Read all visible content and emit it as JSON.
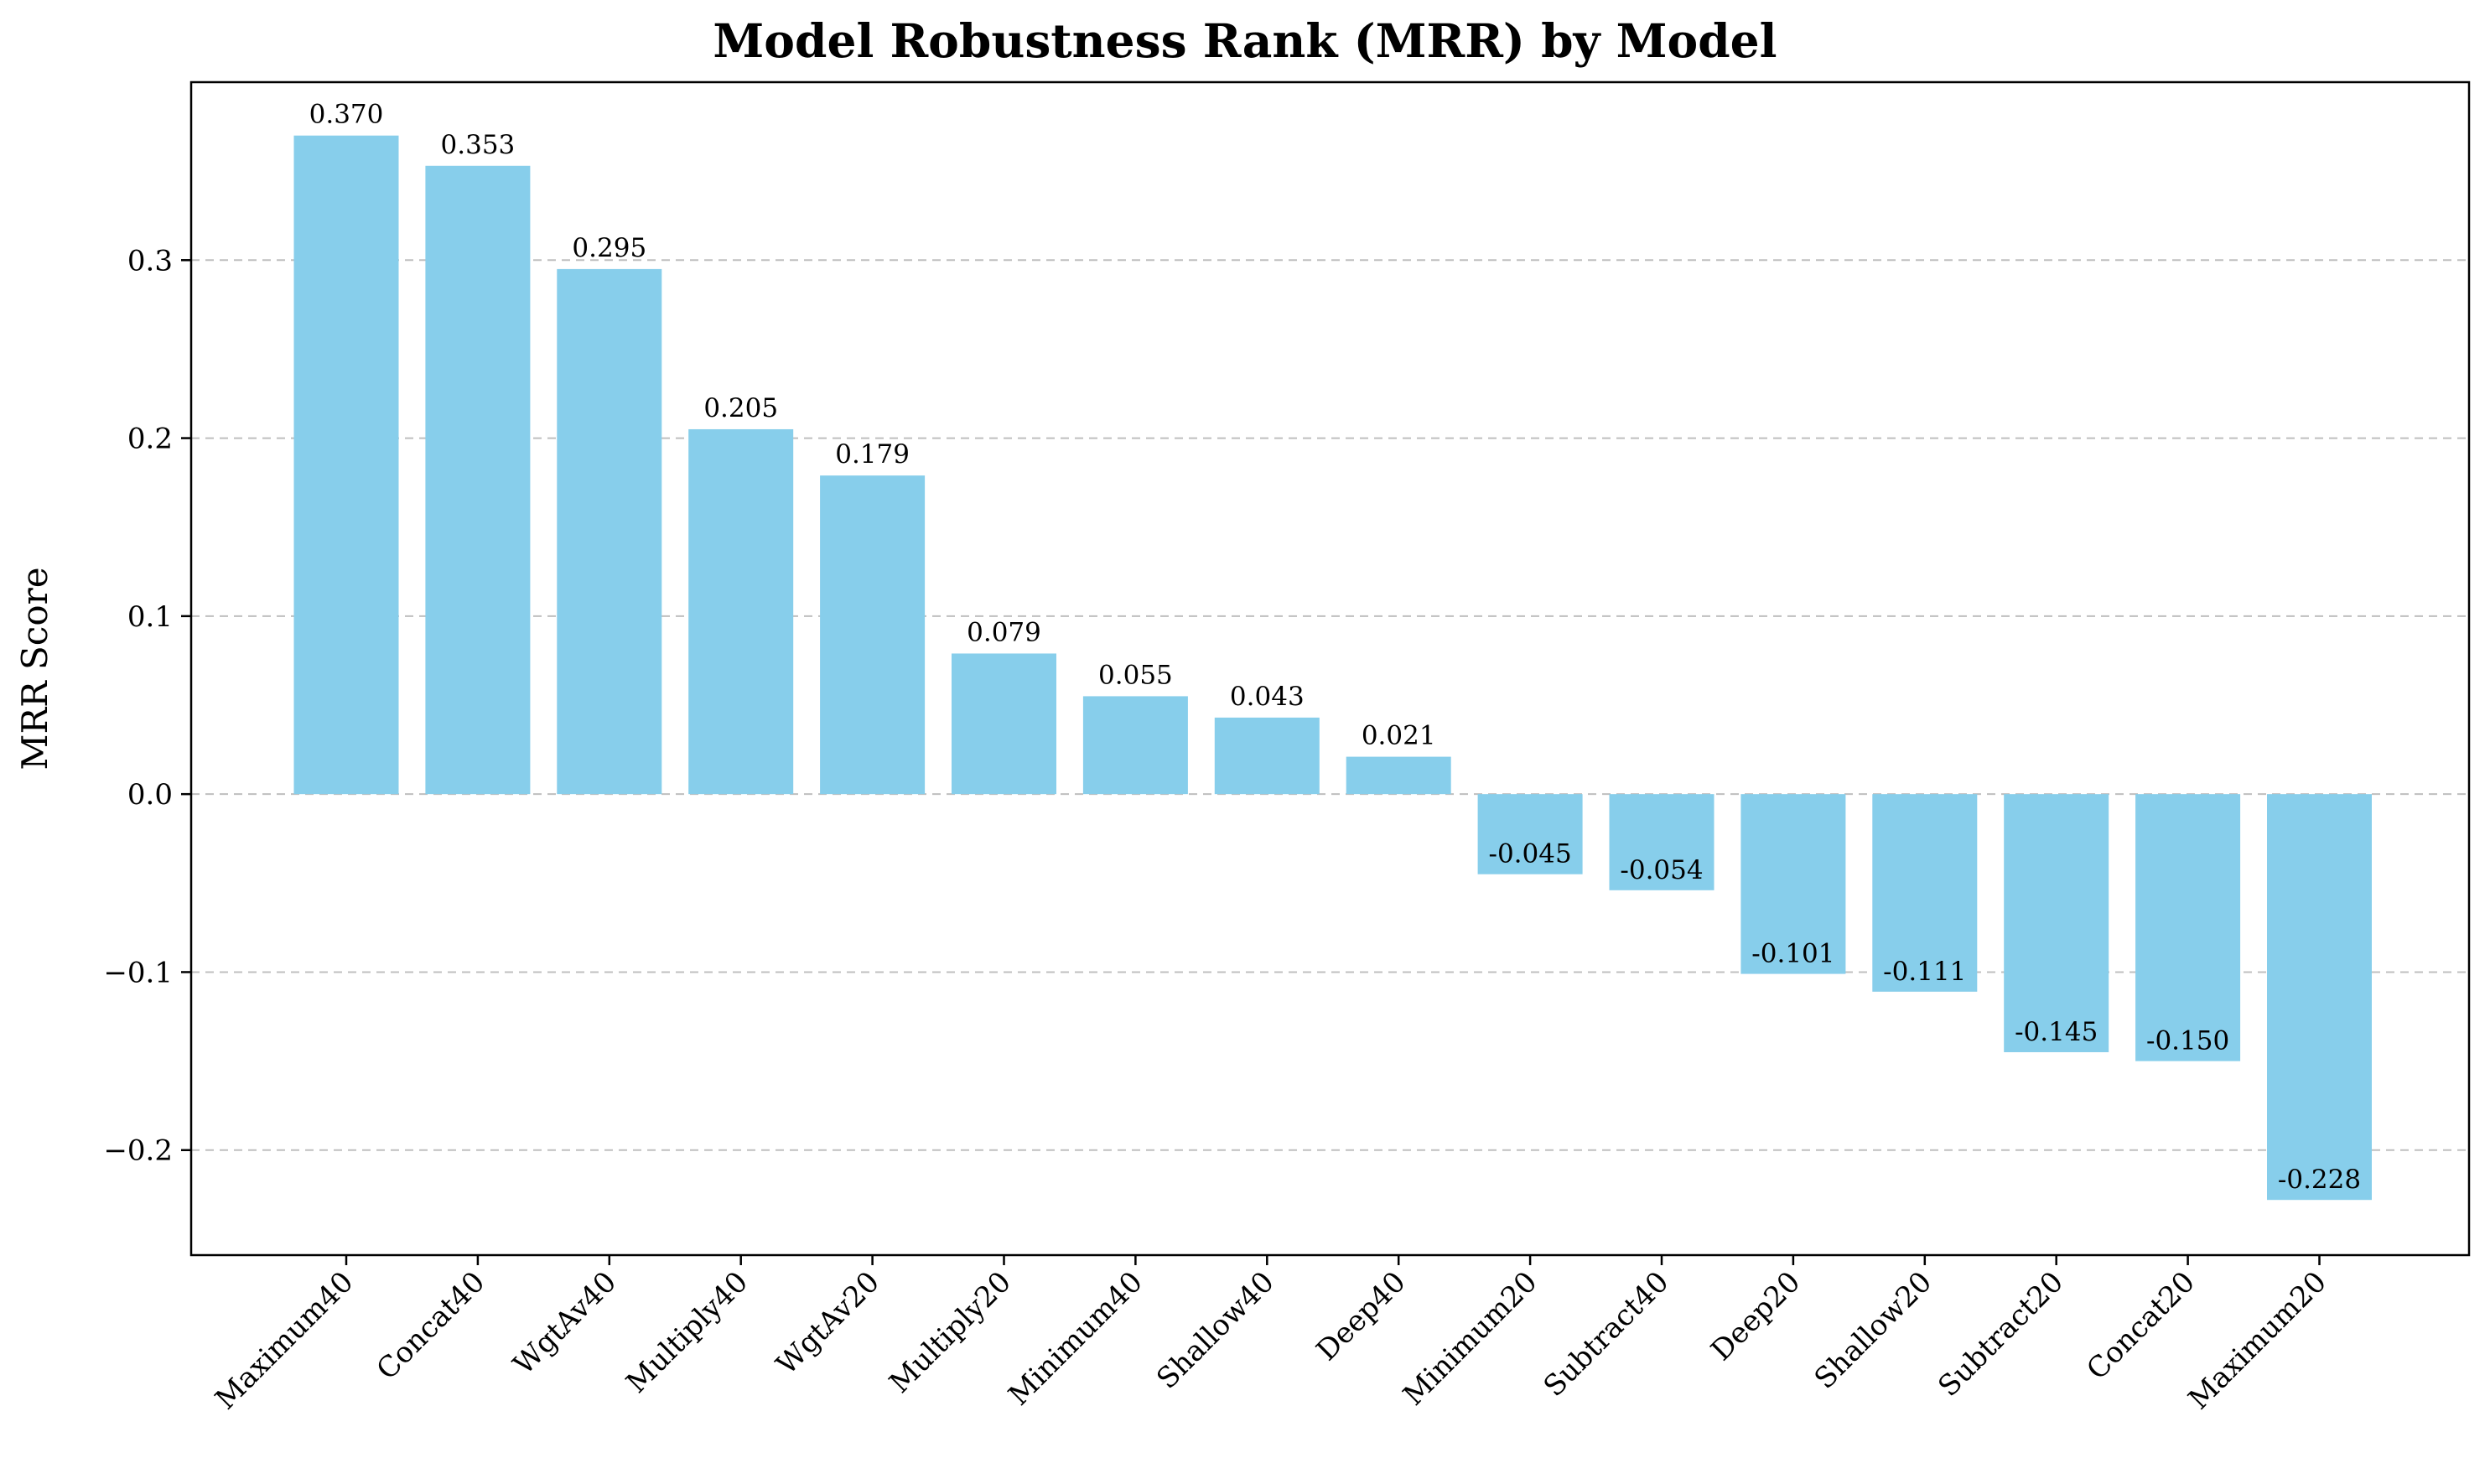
{
  "chart_data": {
    "type": "bar",
    "title": "Model Robustness Rank (MRR) by Model",
    "xlabel": "",
    "ylabel": "MRR Score",
    "categories": [
      "Maximum40",
      "Concat40",
      "WgtAv40",
      "Multiply40",
      "WgtAv20",
      "Multiply20",
      "Minimum40",
      "Shallow40",
      "Deep40",
      "Minimum20",
      "Subtract40",
      "Deep20",
      "Shallow20",
      "Subtract20",
      "Concat20",
      "Maximum20"
    ],
    "values": [
      0.37,
      0.353,
      0.295,
      0.205,
      0.179,
      0.079,
      0.055,
      0.043,
      0.021,
      -0.045,
      -0.054,
      -0.101,
      -0.111,
      -0.145,
      -0.15,
      -0.228
    ],
    "value_labels": [
      "0.370",
      "0.353",
      "0.295",
      "0.205",
      "0.179",
      "0.079",
      "0.055",
      "0.043",
      "0.021",
      "-0.045",
      "-0.054",
      "-0.101",
      "-0.111",
      "-0.145",
      "-0.150",
      "-0.228"
    ],
    "ylim": [
      -0.259,
      0.4
    ],
    "yticks": [
      -0.2,
      -0.1,
      0.0,
      0.1,
      0.2,
      0.3
    ],
    "ytick_labels": [
      "−0.2",
      "−0.1",
      "0.0",
      "0.1",
      "0.2",
      "0.3"
    ],
    "grid": "horizontal dashed",
    "legend": "none",
    "bar_color": "#87CEEB",
    "grid_color": "#bfbfbf"
  }
}
